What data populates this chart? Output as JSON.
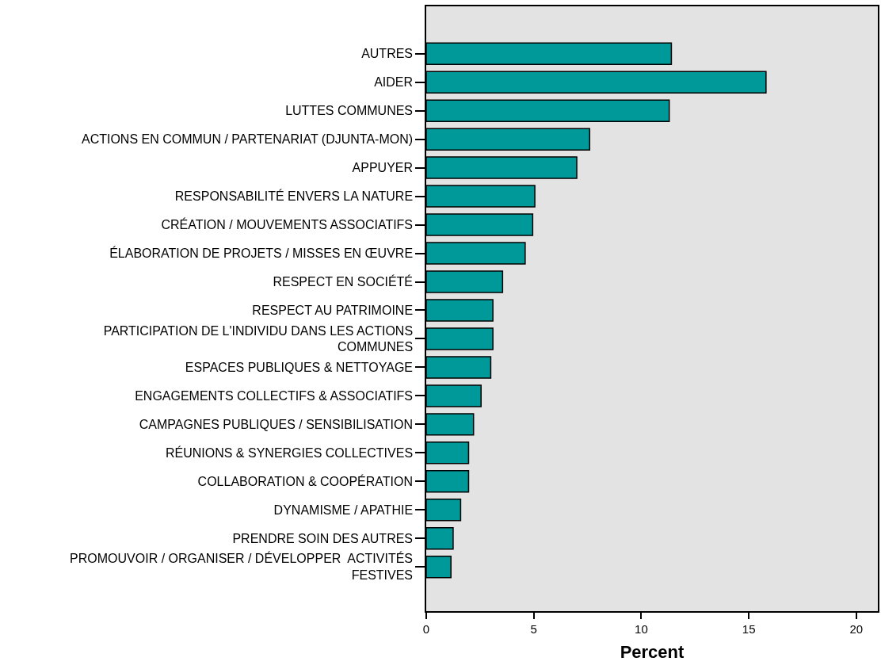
{
  "chart_data": {
    "type": "bar",
    "orientation": "horizontal",
    "xlabel": "Percent",
    "categories": [
      "AUTRES",
      "AIDER",
      "LUTTES COMMUNES",
      "ACTIONS EN COMMUN / PARTENARIAT (DJUNTA-MON)",
      "APPUYER",
      "RESPONSABILITÉ ENVERS LA NATURE",
      "CRÉATION / MOUVEMENTS ASSOCIATIFS",
      "ÉLABORATION DE PROJETS / MISSES EN ŒUVRE",
      "RESPECT EN SOCIÉTÉ",
      "RESPECT AU PATRIMOINE",
      "PARTICIPATION DE L'INDIVIDU DANS LES ACTIONS\nCOMMUNES",
      "ESPACES PUBLIQUES & NETTOYAGE",
      "ENGAGEMENTS COLLECTIFS & ASSOCIATIFS",
      "CAMPAGNES PUBLIQUES / SENSIBILISATION",
      "RÉUNIONS & SYNERGIES COLLECTIVES",
      "COLLABORATION & COOPÉRATION",
      "DYNAMISME / APATHIE",
      "PRENDRE SOIN DES AUTRES",
      "PROMOUVOIR / ORGANISER / DÉVELOPPER  ACTIVITÉS\nFESTIVES"
    ],
    "values": [
      11.4,
      15.8,
      11.3,
      7.6,
      7.0,
      5.05,
      4.95,
      4.6,
      3.55,
      3.1,
      3.1,
      3.0,
      2.55,
      2.2,
      1.97,
      1.97,
      1.6,
      1.25,
      1.15
    ],
    "color": "#009999",
    "xlim": [
      0,
      21
    ],
    "xticks": [
      0,
      5,
      10,
      15,
      20
    ],
    "grid": false,
    "legend": false
  }
}
